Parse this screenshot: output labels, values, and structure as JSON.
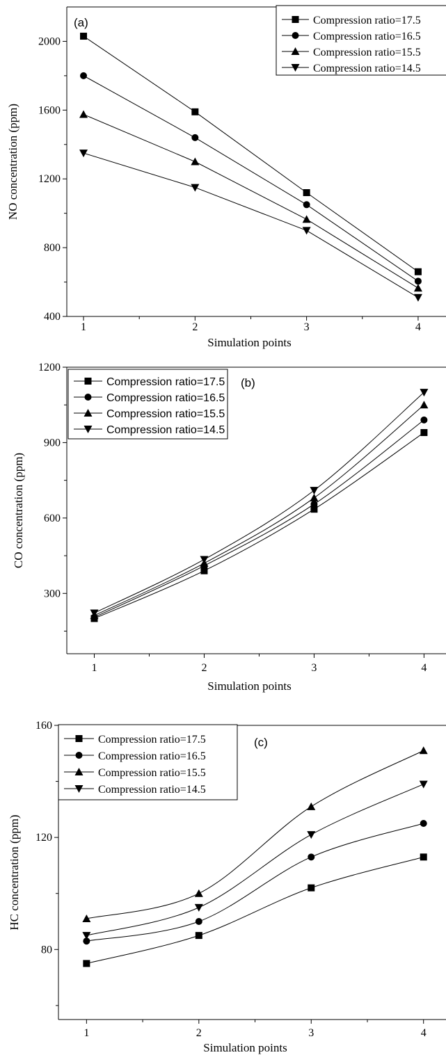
{
  "chart_data": [
    {
      "panel_label": "(a)",
      "type": "line",
      "x": [
        1,
        2,
        3,
        4
      ],
      "xlabel": "Simulation points",
      "ylabel": "NO concentration (ppm)",
      "xlim": [
        0.85,
        4.25
      ],
      "ylim": [
        400,
        2200
      ],
      "xticks": [
        "1",
        "2",
        "3",
        "4"
      ],
      "yticks": [
        "400",
        "800",
        "1200",
        "1600",
        "2000"
      ],
      "grid": false,
      "legend_position": "top-right",
      "series": [
        {
          "name": "Compression ratio=17.5",
          "marker": "square",
          "values": [
            2030,
            1590,
            1120,
            660
          ]
        },
        {
          "name": "Compression ratio=16.5",
          "marker": "circle",
          "values": [
            1800,
            1440,
            1050,
            605
          ]
        },
        {
          "name": "Compression ratio=15.5",
          "marker": "triangle-up",
          "values": [
            1575,
            1300,
            965,
            565
          ]
        },
        {
          "name": "Compression ratio=14.5",
          "marker": "triangle-down",
          "values": [
            1350,
            1150,
            900,
            510
          ]
        }
      ]
    },
    {
      "panel_label": "(b)",
      "type": "line",
      "x": [
        1,
        2,
        3,
        4
      ],
      "xlabel": "Simulation points",
      "ylabel": "CO concentration (ppm)",
      "xlim": [
        0.75,
        4.2
      ],
      "ylim": [
        60,
        1200
      ],
      "xticks": [
        "1",
        "2",
        "3",
        "4"
      ],
      "yticks": [
        "300",
        "600",
        "900",
        "1200"
      ],
      "grid": false,
      "legend_position": "top-left",
      "series": [
        {
          "name": "Compression ratio=17.5",
          "marker": "square",
          "values": [
            200,
            390,
            635,
            940
          ]
        },
        {
          "name": "Compression ratio=16.5",
          "marker": "circle",
          "values": [
            205,
            410,
            655,
            990
          ]
        },
        {
          "name": "Compression ratio=15.5",
          "marker": "triangle-up",
          "values": [
            212,
            420,
            680,
            1050
          ]
        },
        {
          "name": "Compression ratio=14.5",
          "marker": "triangle-down",
          "values": [
            222,
            435,
            710,
            1100
          ]
        }
      ]
    },
    {
      "panel_label": "(c)",
      "type": "line",
      "x": [
        1,
        2,
        3,
        4
      ],
      "xlabel": "Simulation points",
      "ylabel": "HC concentration (ppm)",
      "xlim": [
        0.75,
        4.2
      ],
      "ylim": [
        55,
        160
      ],
      "xticks": [
        "1",
        "2",
        "3",
        "4"
      ],
      "yticks": [
        "80",
        "120",
        "160"
      ],
      "grid": false,
      "legend_position": "top-left",
      "series": [
        {
          "name": "Compression ratio=17.5",
          "marker": "square",
          "values": [
            75,
            85,
            102,
            113
          ]
        },
        {
          "name": "Compression ratio=16.5",
          "marker": "circle",
          "values": [
            83,
            90,
            113,
            125
          ]
        },
        {
          "name": "Compression ratio=15.5",
          "marker": "triangle-up",
          "values": [
            91,
            100,
            131,
            151
          ]
        },
        {
          "name": "Compression ratio=14.5",
          "marker": "triangle-down",
          "values": [
            85,
            95,
            121,
            139
          ]
        }
      ]
    }
  ]
}
